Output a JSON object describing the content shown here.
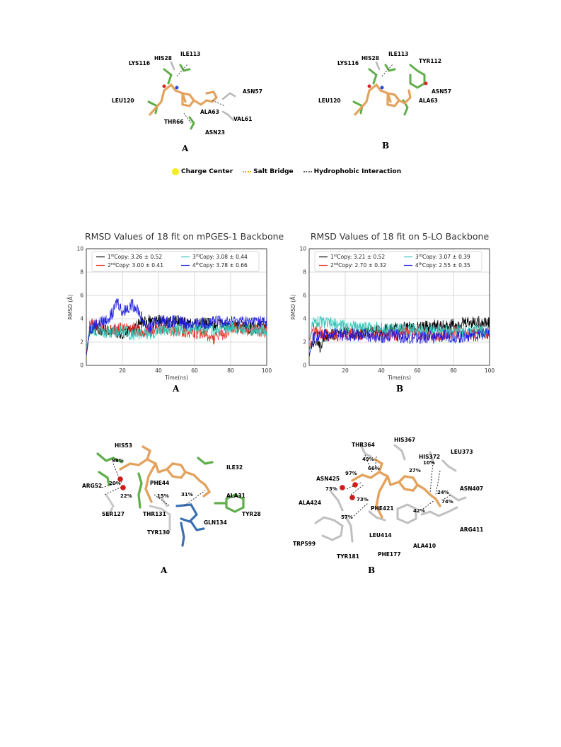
{
  "fig_top": {
    "A": {
      "letter": "A",
      "labels": [
        "LYS116",
        "HIS28",
        "ILE113",
        "ASN57",
        "LEU120",
        "ALA63",
        "VAL61",
        "THR66",
        "ASN23"
      ]
    },
    "B": {
      "letter": "B",
      "labels": [
        "LYS116",
        "HIS28",
        "ILE113",
        "TYR112",
        "ASN57",
        "LEU120",
        "ALA63"
      ]
    },
    "legend": {
      "charge_center": "Charge Center",
      "salt_bridge": "Salt Bridge",
      "hydrophobic": "Hydrophobic Interaction",
      "colors": {
        "charge": "#f4ef1a",
        "salt": "#f5a21a",
        "hydro": "#666666"
      }
    }
  },
  "chart_data": [
    {
      "type": "line",
      "title": "RMSD Values of 18 fit on mPGES-1 Backbone",
      "xlabel": "Time(ns)",
      "ylabel": "RMSD (Å)",
      "xlim": [
        0,
        100
      ],
      "ylim": [
        0,
        10
      ],
      "xticks": [
        "20",
        "40",
        "60",
        "80",
        "100"
      ],
      "yticks": [
        "0",
        "2",
        "4",
        "6",
        "8",
        "10"
      ],
      "grid": true,
      "legend_placement": "top",
      "panel_letter": "A",
      "series": [
        {
          "name": "1stCopy: 3.26 ± 0.52",
          "ord": "st",
          "num": "1",
          "rest": "Copy: 3.26 ± 0.52",
          "color": "#000000",
          "x": [
            0,
            2,
            5,
            10,
            15,
            20,
            25,
            30,
            35,
            40,
            45,
            50,
            55,
            60,
            65,
            70,
            75,
            80,
            85,
            90,
            95,
            100
          ],
          "values": [
            0.8,
            3.0,
            3.1,
            3.0,
            2.9,
            2.8,
            3.0,
            3.6,
            3.9,
            3.8,
            3.7,
            3.8,
            3.6,
            3.5,
            3.6,
            3.5,
            3.4,
            3.4,
            3.3,
            3.2,
            3.2,
            3.3
          ]
        },
        {
          "name": "2ndCopy: 3.00 ± 0.41",
          "ord": "nd",
          "num": "2",
          "rest": "Copy: 3.00 ± 0.41",
          "color": "#e8281e",
          "x": [
            0,
            2,
            5,
            10,
            15,
            20,
            25,
            30,
            35,
            40,
            45,
            50,
            55,
            60,
            65,
            70,
            75,
            80,
            85,
            90,
            95,
            100
          ],
          "values": [
            1.0,
            3.6,
            3.4,
            3.1,
            3.0,
            3.2,
            3.1,
            3.0,
            2.9,
            3.2,
            3.0,
            3.0,
            2.9,
            2.8,
            2.7,
            2.3,
            2.6,
            3.1,
            3.2,
            3.1,
            3.0,
            2.9
          ]
        },
        {
          "name": "3rdCopy: 3.08 ± 0.44",
          "ord": "rd",
          "num": "3",
          "rest": "Copy: 3.08 ± 0.44",
          "color": "#2ec4b6",
          "x": [
            0,
            2,
            5,
            10,
            15,
            20,
            25,
            30,
            35,
            40,
            45,
            50,
            55,
            60,
            65,
            70,
            75,
            80,
            85,
            90,
            95,
            100
          ],
          "values": [
            1.5,
            2.9,
            3.0,
            2.8,
            2.9,
            3.0,
            2.6,
            2.8,
            2.7,
            3.0,
            3.1,
            3.0,
            3.1,
            3.2,
            3.1,
            3.0,
            3.1,
            3.3,
            3.2,
            3.0,
            3.1,
            2.9
          ]
        },
        {
          "name": "4thCopy: 3.78 ± 0.66",
          "ord": "th",
          "num": "4",
          "rest": "Copy: 3.78 ± 0.66",
          "color": "#1f1fe0",
          "x": [
            0,
            2,
            5,
            10,
            15,
            17,
            20,
            25,
            28,
            32,
            35,
            40,
            45,
            50,
            55,
            60,
            65,
            70,
            75,
            80,
            85,
            90,
            95,
            100
          ],
          "values": [
            0.9,
            3.2,
            3.5,
            3.8,
            4.5,
            5.6,
            4.6,
            5.2,
            5.0,
            3.6,
            3.2,
            3.9,
            3.7,
            3.8,
            3.6,
            3.5,
            3.6,
            3.7,
            3.8,
            3.7,
            3.8,
            3.7,
            3.8,
            3.7
          ]
        }
      ]
    },
    {
      "type": "line",
      "title": "RMSD Values of 18 fit on 5-LO Backbone",
      "xlabel": "Time(ns)",
      "ylabel": "RMSD (Å)",
      "xlim": [
        0,
        100
      ],
      "ylim": [
        0,
        10
      ],
      "xticks": [
        "20",
        "40",
        "60",
        "80",
        "100"
      ],
      "yticks": [
        "0",
        "2",
        "4",
        "6",
        "8",
        "10"
      ],
      "grid": true,
      "legend_placement": "top",
      "panel_letter": "B",
      "series": [
        {
          "name": "1stCopy: 3.21 ± 0.52",
          "ord": "st",
          "num": "1",
          "rest": "Copy: 3.21 ± 0.52",
          "color": "#000000",
          "x": [
            0,
            2,
            4,
            6,
            8,
            10,
            15,
            20,
            25,
            30,
            35,
            40,
            45,
            50,
            55,
            60,
            65,
            70,
            75,
            80,
            85,
            90,
            95,
            100
          ],
          "values": [
            0.8,
            2.2,
            1.8,
            1.6,
            2.4,
            2.6,
            2.7,
            2.8,
            2.9,
            2.8,
            3.0,
            3.0,
            3.1,
            3.2,
            3.2,
            3.3,
            3.3,
            3.4,
            3.4,
            3.5,
            3.6,
            3.7,
            3.7,
            3.6
          ]
        },
        {
          "name": "2ndCopy: 2.70 ± 0.32",
          "ord": "nd",
          "num": "2",
          "rest": "Copy: 2.70 ± 0.32",
          "color": "#e8281e",
          "x": [
            0,
            2,
            5,
            10,
            15,
            20,
            25,
            30,
            35,
            40,
            45,
            50,
            55,
            60,
            65,
            70,
            75,
            80,
            85,
            90,
            95,
            100
          ],
          "values": [
            1.2,
            3.2,
            2.8,
            2.6,
            2.6,
            2.7,
            2.6,
            2.7,
            2.8,
            2.7,
            2.6,
            2.7,
            2.8,
            2.7,
            2.6,
            2.6,
            2.7,
            2.8,
            2.7,
            2.7,
            2.8,
            2.8
          ]
        },
        {
          "name": "3rdCopy: 3.07 ± 0.39",
          "ord": "rd",
          "num": "3",
          "rest": "Copy: 3.07 ± 0.39",
          "color": "#2ec4b6",
          "x": [
            0,
            2,
            5,
            10,
            15,
            20,
            25,
            30,
            35,
            40,
            45,
            50,
            55,
            60,
            65,
            70,
            75,
            80,
            85,
            90,
            95,
            100
          ],
          "values": [
            2.0,
            3.6,
            3.8,
            3.6,
            3.5,
            3.4,
            3.3,
            3.3,
            3.2,
            3.2,
            3.1,
            3.1,
            3.1,
            3.0,
            3.0,
            3.1,
            3.0,
            3.0,
            2.9,
            2.9,
            3.0,
            2.9
          ]
        },
        {
          "name": "4thCopy: 2.55 ± 0.35",
          "ord": "th",
          "num": "4",
          "rest": "Copy: 2.55 ± 0.35",
          "color": "#1f1fe0",
          "x": [
            0,
            2,
            5,
            10,
            15,
            20,
            25,
            30,
            35,
            40,
            45,
            50,
            55,
            60,
            65,
            70,
            75,
            80,
            85,
            90,
            95,
            100
          ],
          "values": [
            0.7,
            2.4,
            2.5,
            2.6,
            2.7,
            2.6,
            2.6,
            2.6,
            2.5,
            2.4,
            2.6,
            2.5,
            2.4,
            2.3,
            2.4,
            2.4,
            2.5,
            2.5,
            2.4,
            2.6,
            2.6,
            2.7
          ]
        }
      ]
    }
  ],
  "fig_bottom": {
    "A": {
      "letter": "A",
      "labels": [
        "HIS53",
        "ARG52",
        "SER127",
        "PHE44",
        "THR131",
        "TYR130",
        "GLN134",
        "ILE32",
        "ALA31",
        "TYR28"
      ],
      "percents": [
        "98%",
        "20%",
        "22%",
        "15%",
        "31%"
      ]
    },
    "B": {
      "letter": "B",
      "labels": [
        "THR364",
        "HIS367",
        "HIS372",
        "LEU373",
        "ASN425",
        "ASN407",
        "ALA424",
        "PHE421",
        "ARG411",
        "LEU414",
        "ALA410",
        "TRP599",
        "TYR181",
        "PHE177"
      ],
      "percents": [
        "49%",
        "66%",
        "97%",
        "27%",
        "10%",
        "73%",
        "73%",
        "24%",
        "74%",
        "42%",
        "57%"
      ]
    }
  }
}
